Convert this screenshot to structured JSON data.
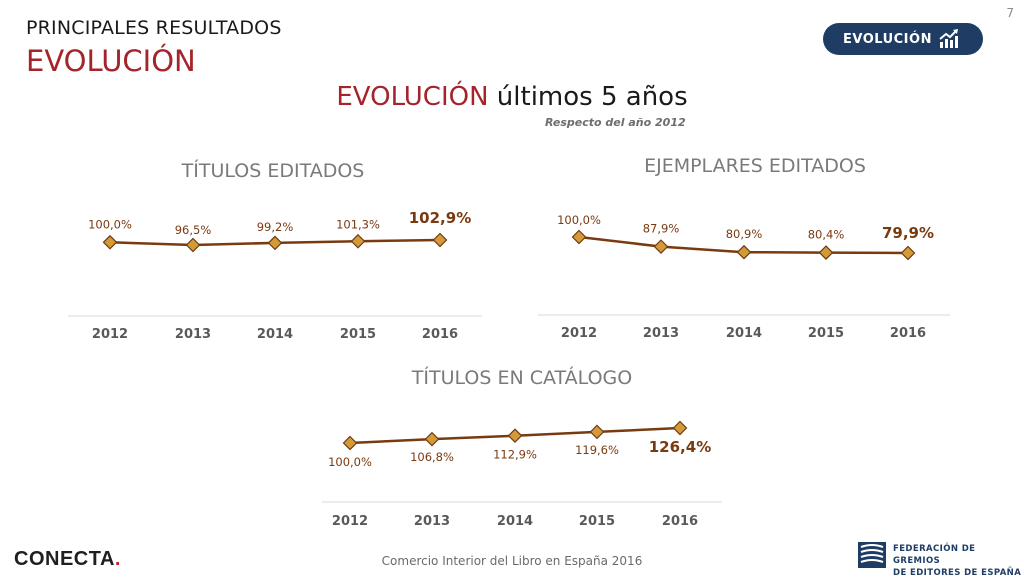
{
  "page_number": "7",
  "header": {
    "section_label": "PRINCIPALES RESULTADOS",
    "section_title": "EVOLUCIÓN",
    "badge_label": "EVOLUCIÓN",
    "badge_icon": "trend-chart-icon"
  },
  "main": {
    "heading_accent": "EVOLUCIÓN",
    "heading_rest": "últimos 5 años",
    "subtitle": "Respecto del año 2012"
  },
  "colors": {
    "accent_red": "#a5242b",
    "navy": "#1f3d64",
    "line": "#7a3a10",
    "marker_fill": "#d49a3a",
    "marker_stroke": "#6b3a12",
    "label": "#7a3a10"
  },
  "chart_data": [
    {
      "type": "line",
      "title": "TÍTULOS EDITADOS",
      "categories": [
        "2012",
        "2013",
        "2014",
        "2015",
        "2016"
      ],
      "values": [
        100.0,
        96.5,
        99.2,
        101.3,
        102.9
      ],
      "labels": [
        "100,0%",
        "96,5%",
        "99,2%",
        "101,3%",
        "102,9%"
      ]
    },
    {
      "type": "line",
      "title": "EJEMPLARES EDITADOS",
      "categories": [
        "2012",
        "2013",
        "2014",
        "2015",
        "2016"
      ],
      "values": [
        100.0,
        87.9,
        80.9,
        80.4,
        79.9
      ],
      "labels": [
        "100,0%",
        "87,9%",
        "80,9%",
        "80,4%",
        "79,9%"
      ]
    },
    {
      "type": "line",
      "title": "TÍTULOS EN CATÁLOGO",
      "categories": [
        "2012",
        "2013",
        "2014",
        "2015",
        "2016"
      ],
      "values": [
        100.0,
        106.8,
        112.9,
        119.6,
        126.4
      ],
      "labels": [
        "100,0%",
        "106,8%",
        "112,9%",
        "119,6%",
        "126,4%"
      ]
    }
  ],
  "footer": {
    "logo_text": "CONECTA",
    "logo_dot": ".",
    "caption": "Comercio Interior del Libro en España 2016",
    "federation_line1": "FEDERACIÓN DE GREMIOS",
    "federation_line2": "DE EDITORES DE ESPAÑA"
  }
}
